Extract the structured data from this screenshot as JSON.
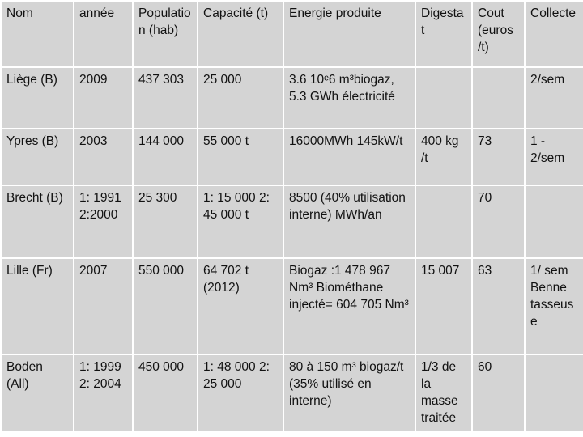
{
  "table": {
    "header": [
      "Nom",
      "année",
      "Population (hab)",
      "Capacité (t)",
      "Energie produite",
      "Digestat",
      "Cout (euros /t)",
      "Collecte"
    ],
    "rows": [
      [
        "Liège (B)",
        "2009",
        "437 303",
        "25 000",
        "3.6 10ᵉ6 m³biogaz, 5.3 GWh électricité",
        null,
        null,
        "2/sem"
      ],
      [
        "Ypres (B)",
        "2003",
        "144 000",
        "55 000 t",
        "16000MWh 145kW/t",
        "400 kg /t",
        "73",
        "1 - 2/sem"
      ],
      [
        "Brecht (B)",
        "1: 1991 2:2000",
        "25 300",
        "1: 15 000 2: 45 000 t",
        "8500 (40% utilisation interne) MWh/an",
        null,
        "70",
        null
      ],
      [
        "Lille (Fr)",
        "2007",
        "550 000",
        "64 702 t (2012)",
        "Biogaz :1 478 967 Nm³ Biométhane injecté= 604 705 Nm³",
        "15 007",
        "63",
        "1/ sem Benne tasseuse"
      ],
      [
        "Boden (All)",
        "1: 1999 2: 2004",
        "450 000",
        "1: 48 000 2: 25 000",
        "80 à 150 m³ biogaz/t (35% utilisé en interne)",
        "1/3 de la masse traitée",
        "60",
        null
      ]
    ]
  }
}
